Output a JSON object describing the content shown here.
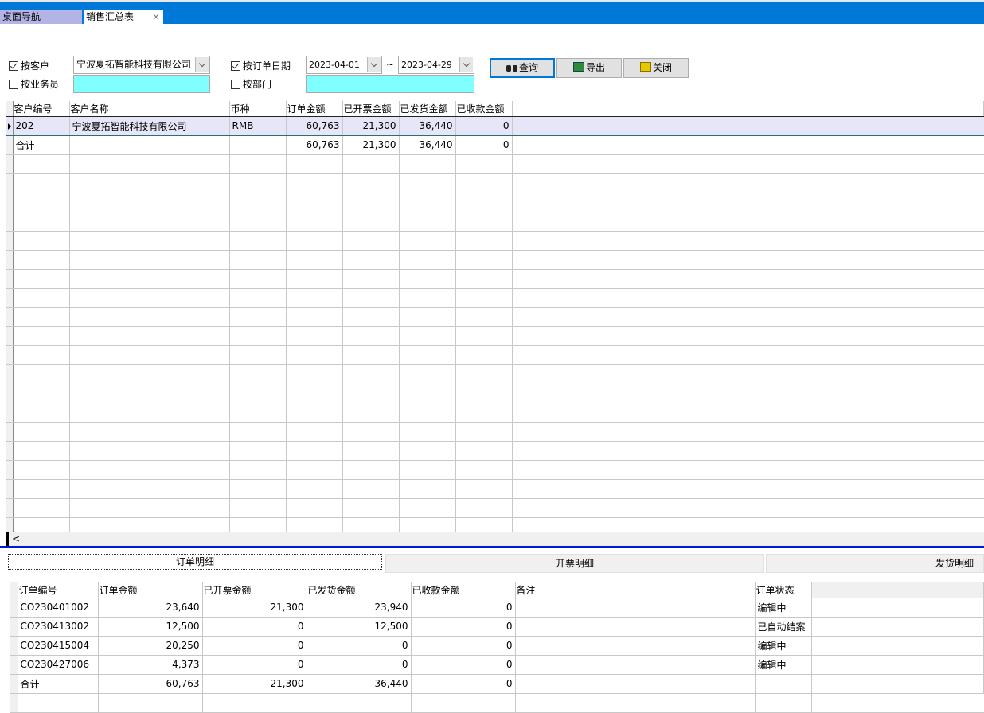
{
  "tabs": [
    {
      "label": "桌面导航"
    },
    {
      "label": "销售汇总表",
      "close": "×"
    }
  ],
  "filters": {
    "by_customer": {
      "label": "按客户",
      "checked": true,
      "value": "宁波夏拓智能科技有限公司"
    },
    "by_salesman": {
      "label": "按业务员",
      "checked": false,
      "value": ""
    },
    "by_order_date": {
      "label": "按订单日期",
      "checked": true,
      "from": "2023-04-01",
      "sep": "~",
      "to": "2023-04-29"
    },
    "by_department": {
      "label": "按部门",
      "checked": false,
      "value": ""
    }
  },
  "buttons": {
    "query": "查询",
    "export": "导出",
    "close": "关闭"
  },
  "summary_grid": {
    "columns": [
      "客户编号",
      "客户名称",
      "币种",
      "订单金额",
      "已开票金额",
      "已发货金额",
      "已收款金额"
    ],
    "rows": [
      [
        "202",
        "宁波夏拓智能科技有限公司",
        "RMB",
        "60,763",
        "21,300",
        "36,440",
        "0"
      ],
      [
        "合计",
        "",
        "",
        "60,763",
        "21,300",
        "36,440",
        "0"
      ]
    ]
  },
  "scroll_left": "<",
  "detail_tabs": [
    "订单明细",
    "开票明细",
    "发货明细"
  ],
  "detail_grid": {
    "columns": [
      "订单编号",
      "订单金额",
      "已开票金额",
      "已发货金额",
      "已收款金额",
      "备注",
      "订单状态"
    ],
    "rows": [
      [
        "CO230401002",
        "23,640",
        "21,300",
        "23,940",
        "0",
        "",
        "编辑中"
      ],
      [
        "CO230413002",
        "12,500",
        "0",
        "12,500",
        "0",
        "",
        "已自动结案"
      ],
      [
        "CO230415004",
        "20,250",
        "0",
        "0",
        "0",
        "",
        "编辑中"
      ],
      [
        "CO230427006",
        "4,373",
        "0",
        "0",
        "0",
        "",
        "编辑中"
      ],
      [
        "合计",
        "60,763",
        "21,300",
        "36,440",
        "0",
        "",
        ""
      ]
    ]
  },
  "colors": {
    "titlebar": "#0078d7",
    "lookup_field": "#80ffff",
    "divider": "#0018d0"
  }
}
